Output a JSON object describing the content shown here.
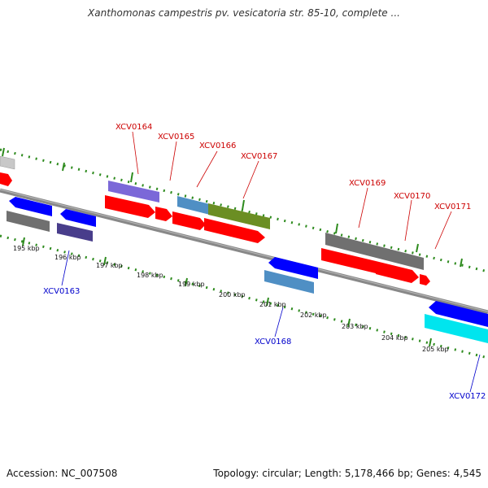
{
  "title": "Xanthomonas campestris pv. vesicatoria str. 85-10, complete ...",
  "footer": {
    "accession_label": "Accession:",
    "accession": "NC_007508",
    "topology_label": "Topology:",
    "topology": "circular",
    "length_label": "Length:",
    "length": "5,178,466 bp",
    "genes_label": "Genes:",
    "genes": "4,545"
  },
  "scale": {
    "ticks": [
      "195 kbp",
      "196 kbp",
      "197 kbp",
      "198 kbp",
      "199 kbp",
      "200 kbp",
      "201 kbp",
      "202 kbp",
      "203 kbp",
      "204 kbp",
      "205 kbp"
    ]
  },
  "colors": {
    "forward_strand_gene": "#ff0000",
    "reverse_strand_gene": "#0000ff",
    "backbone": "#888888",
    "tick_green": "#2e8b1e",
    "label_forward": "#cc0000",
    "label_reverse": "#0000cc",
    "purple": "#7b68d8",
    "steelblue": "#4f8fc4",
    "olive": "#6b8e23",
    "gray": "#707070",
    "dark_purple": "#483d8b",
    "cyan": "#00e5ee",
    "light_gray": "#c8c8c8"
  },
  "gene_labels_forward": [
    "XCV0164",
    "XCV0165",
    "XCV0166",
    "XCV0167",
    "XCV0169",
    "XCV0170",
    "XCV0171"
  ],
  "gene_labels_reverse": [
    "XCV0163",
    "XCV0168",
    "XCV0172"
  ]
}
